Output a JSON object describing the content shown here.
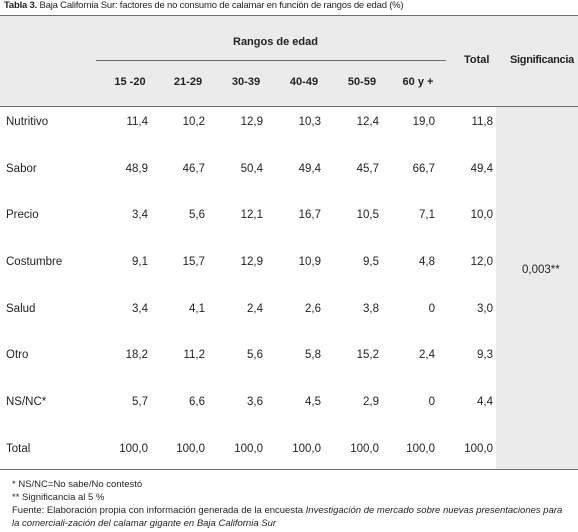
{
  "caption": {
    "label": "Tabla 3.",
    "text": " Baja California Sur: factores de no consumo de calamar en función de rangos de edad (%)"
  },
  "header": {
    "group_label": "Rangos de edad",
    "age_columns": [
      "15 -20",
      "21-29",
      "30-39",
      "40-49",
      "50-59",
      "60 y +"
    ],
    "total_label": "Total",
    "significance_label": "Significancia"
  },
  "rows": [
    {
      "label": "Nutritivo",
      "values": [
        "11,4",
        "10,2",
        "12,9",
        "10,3",
        "12,4",
        "19,0"
      ],
      "total": "11,8"
    },
    {
      "label": "Sabor",
      "values": [
        "48,9",
        "46,7",
        "50,4",
        "49,4",
        "45,7",
        "66,7"
      ],
      "total": "49,4"
    },
    {
      "label": "Precio",
      "values": [
        "3,4",
        "5,6",
        "12,1",
        "16,7",
        "10,5",
        "7,1"
      ],
      "total": "10,0"
    },
    {
      "label": "Costumbre",
      "values": [
        "9,1",
        "15,7",
        "12,9",
        "10,9",
        "9,5",
        "4,8"
      ],
      "total": "12,0"
    },
    {
      "label": "Salud",
      "values": [
        "3,4",
        "4,1",
        "2,4",
        "2,6",
        "3,8",
        "0"
      ],
      "total": "3,0"
    },
    {
      "label": "Otro",
      "values": [
        "18,2",
        "11,2",
        "5,6",
        "5,8",
        "15,2",
        "2,4"
      ],
      "total": "9,3"
    },
    {
      "label": "NS/NC*",
      "values": [
        "5,7",
        "6,6",
        "3,6",
        "4,5",
        "2,9",
        "0"
      ],
      "total": "4,4"
    },
    {
      "label": "Total",
      "values": [
        "100,0",
        "100,0",
        "100,0",
        "100,0",
        "100,0",
        "100,0"
      ],
      "total": "100,0"
    }
  ],
  "significance_value": "0,003**",
  "notes": {
    "line1": "* NS/NC=No sabe/No contestó",
    "line2": "** Significancia al 5 %",
    "source_prefix": "Fuente: Elaboración propia con información generada de la encuesta ",
    "source_italic": "Investigación de mercado sobre nuevas presentaciones para la comerciali-zación del calamar gigante en Baja California Sur"
  }
}
